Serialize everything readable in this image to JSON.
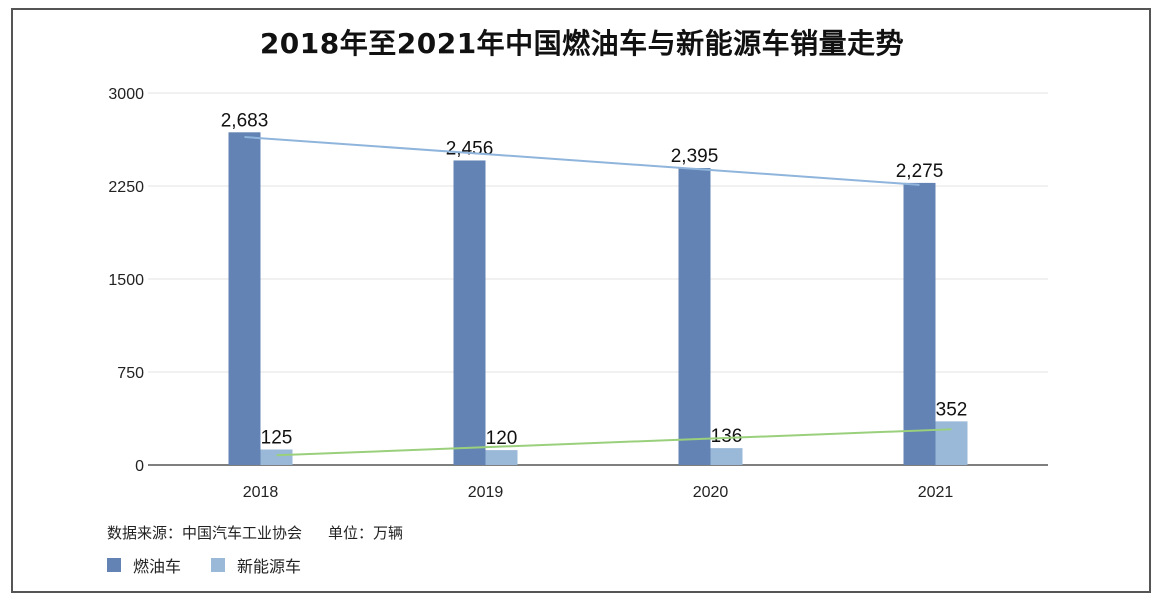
{
  "chart_data": {
    "type": "bar",
    "title": "2018年至2021年中国燃油车与新能源车销量走势",
    "categories": [
      "2018",
      "2019",
      "2020",
      "2021"
    ],
    "series": [
      {
        "name": "燃油车",
        "values": [
          2683,
          2456,
          2395,
          2275
        ],
        "labels": [
          "2,683",
          "2,456",
          "2,395",
          "2,275"
        ],
        "color": "#6283b3"
      },
      {
        "name": "新能源车",
        "values": [
          125,
          120,
          136,
          352
        ],
        "labels": [
          "125",
          "120",
          "136",
          "352"
        ],
        "color": "#9ab8d8"
      }
    ],
    "trendlines": [
      {
        "series": "燃油车",
        "color": "#8fb5dc"
      },
      {
        "series": "新能源车",
        "color": "#9ad07c"
      }
    ],
    "yticks": [
      "0",
      "750",
      "1500",
      "2250",
      "3000"
    ],
    "ylim": [
      0,
      3000
    ],
    "grid": true,
    "legend_position": "bottom-left"
  },
  "footer": {
    "source": "数据来源：中国汽车工业协会",
    "unit": "单位：万辆"
  }
}
